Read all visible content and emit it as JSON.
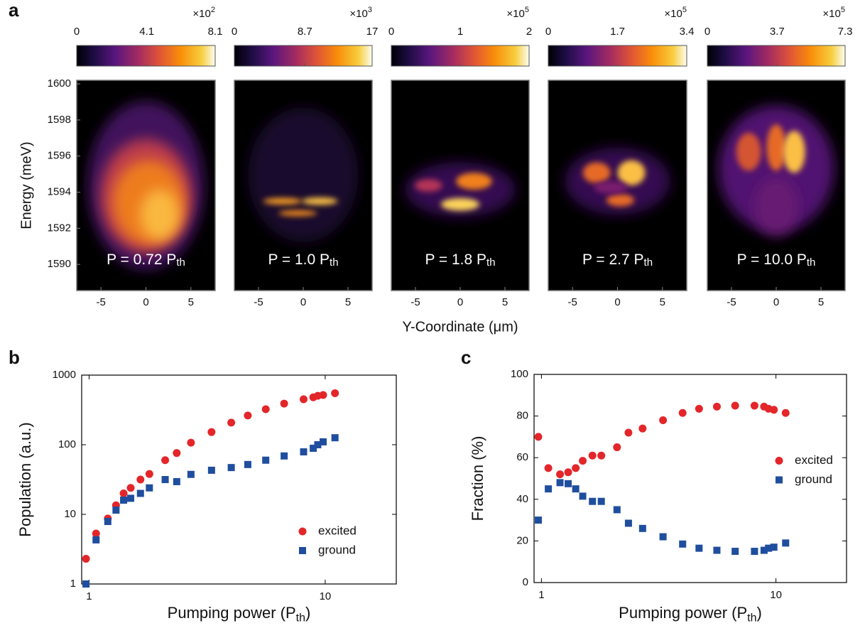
{
  "chart_data": [
    {
      "type": "heatmap",
      "panel_label": "a",
      "ylabel": "Energy (meV)",
      "colorbar": {
        "clim": [
          0,
          8.1
        ],
        "ticks": [
          0,
          4.1,
          8.1
        ],
        "scale_base": "×10",
        "scale_exponent": 2
      },
      "annotation": {
        "text": "P = 0.72 P",
        "subscript": "th"
      },
      "xlim": [
        -7.7,
        7.7
      ],
      "xticks": [
        -5,
        0,
        5
      ],
      "ylim": [
        1588.55,
        1600.2
      ],
      "yticks": [
        1590,
        1592,
        1594,
        1596,
        1598,
        1600
      ]
    },
    {
      "type": "heatmap",
      "colorbar": {
        "clim": [
          0,
          17
        ],
        "ticks": [
          0,
          8.7,
          17
        ],
        "scale_base": "×10",
        "scale_exponent": 3
      },
      "annotation": {
        "text": "P = 1.0 P",
        "subscript": "th"
      },
      "xlim": [
        -7.7,
        7.7
      ],
      "xticks": [
        -5,
        0,
        5
      ]
    },
    {
      "type": "heatmap",
      "xlabel": "Y-Coordinate (μm)",
      "colorbar": {
        "clim": [
          0,
          2
        ],
        "ticks": [
          0,
          1,
          2
        ],
        "scale_base": "×10",
        "scale_exponent": 5
      },
      "annotation": {
        "text": "P = 1.8 P",
        "subscript": "th"
      },
      "xlim": [
        -7.7,
        7.7
      ],
      "xticks": [
        -5,
        0,
        5
      ]
    },
    {
      "type": "heatmap",
      "colorbar": {
        "clim": [
          0,
          3.4
        ],
        "ticks": [
          0,
          1.7,
          3.4
        ],
        "scale_base": "×10",
        "scale_exponent": 5
      },
      "annotation": {
        "text": "P = 2.7 P",
        "subscript": "th"
      },
      "xlim": [
        -7.7,
        7.7
      ],
      "xticks": [
        -5,
        0,
        5
      ]
    },
    {
      "type": "heatmap",
      "colorbar": {
        "clim": [
          0,
          7.3
        ],
        "ticks": [
          0,
          3.7,
          7.3
        ],
        "scale_base": "×10",
        "scale_exponent": 5
      },
      "annotation": {
        "text": "P = 10.0 P",
        "subscript": "th"
      },
      "xlim": [
        -7.7,
        7.7
      ],
      "xticks": [
        -5,
        0,
        5
      ]
    },
    {
      "type": "scatter",
      "panel_label": "b",
      "xlabel": {
        "text": "Pumping power (P",
        "subscript": "th",
        "suffix": ")"
      },
      "ylabel": "Population (a.u.)",
      "xscale": "log",
      "yscale": "log",
      "xlim": [
        0.93,
        20
      ],
      "xticks": [
        1,
        10
      ],
      "ylim": [
        1,
        1000
      ],
      "yticks": [
        1,
        10,
        100,
        1000
      ],
      "legend": "lower right",
      "series": [
        {
          "name": "excited",
          "color": "#e3262a",
          "marker": "circle",
          "x": [
            0.97,
            1.07,
            1.2,
            1.3,
            1.4,
            1.5,
            1.65,
            1.8,
            2.1,
            2.35,
            2.7,
            3.3,
            4,
            4.7,
            5.6,
            6.7,
            8.1,
            8.9,
            9.3,
            9.8,
            11
          ],
          "values": [
            2.3,
            5.3,
            8.7,
            13.5,
            20,
            24,
            31.6,
            38,
            60,
            76,
            107,
            152,
            208,
            263,
            324,
            390,
            450,
            480,
            504,
            518,
            550
          ]
        },
        {
          "name": "ground",
          "color": "#1f4e9e",
          "marker": "square",
          "x": [
            0.97,
            1.07,
            1.2,
            1.3,
            1.4,
            1.5,
            1.65,
            1.8,
            2.1,
            2.35,
            2.7,
            3.3,
            4,
            4.7,
            5.6,
            6.7,
            8.1,
            8.9,
            9.3,
            9.8,
            11
          ],
          "values": [
            1,
            4.3,
            7.9,
            11.5,
            16,
            17,
            20,
            24,
            31.6,
            29.5,
            37.5,
            43,
            47,
            52,
            60,
            69,
            79,
            89,
            100,
            110,
            126
          ]
        }
      ]
    },
    {
      "type": "scatter",
      "panel_label": "c",
      "xlabel": {
        "text": "Pumping power (P",
        "subscript": "th",
        "suffix": ")"
      },
      "ylabel": "Fraction (%)",
      "xscale": "log",
      "xlim": [
        0.93,
        20
      ],
      "xticks": [
        1,
        10
      ],
      "ylim": [
        0,
        100
      ],
      "yticks": [
        0,
        20,
        40,
        60,
        80,
        100
      ],
      "legend": "right",
      "series": [
        {
          "name": "excited",
          "color": "#e3262a",
          "marker": "circle",
          "x": [
            0.97,
            1.07,
            1.2,
            1.3,
            1.4,
            1.5,
            1.65,
            1.8,
            2.1,
            2.35,
            2.7,
            3.3,
            4,
            4.7,
            5.6,
            6.7,
            8.1,
            8.9,
            9.3,
            9.8,
            11
          ],
          "values": [
            70,
            55,
            52,
            53,
            55,
            58.5,
            61,
            61,
            65,
            72,
            74,
            78,
            81.5,
            83.5,
            84.5,
            85,
            85,
            84.5,
            83.5,
            83,
            81.5
          ]
        },
        {
          "name": "ground",
          "color": "#1f4e9e",
          "marker": "square",
          "x": [
            0.97,
            1.07,
            1.2,
            1.3,
            1.4,
            1.5,
            1.65,
            1.8,
            2.1,
            2.35,
            2.7,
            3.3,
            4,
            4.7,
            5.6,
            6.7,
            8.1,
            8.9,
            9.3,
            9.8,
            11
          ],
          "values": [
            30,
            45,
            48,
            47.5,
            45,
            41.5,
            39,
            39,
            35,
            28.5,
            26,
            22,
            18.5,
            16.5,
            15.5,
            15,
            15,
            15.5,
            16.5,
            17,
            19
          ]
        }
      ]
    }
  ]
}
